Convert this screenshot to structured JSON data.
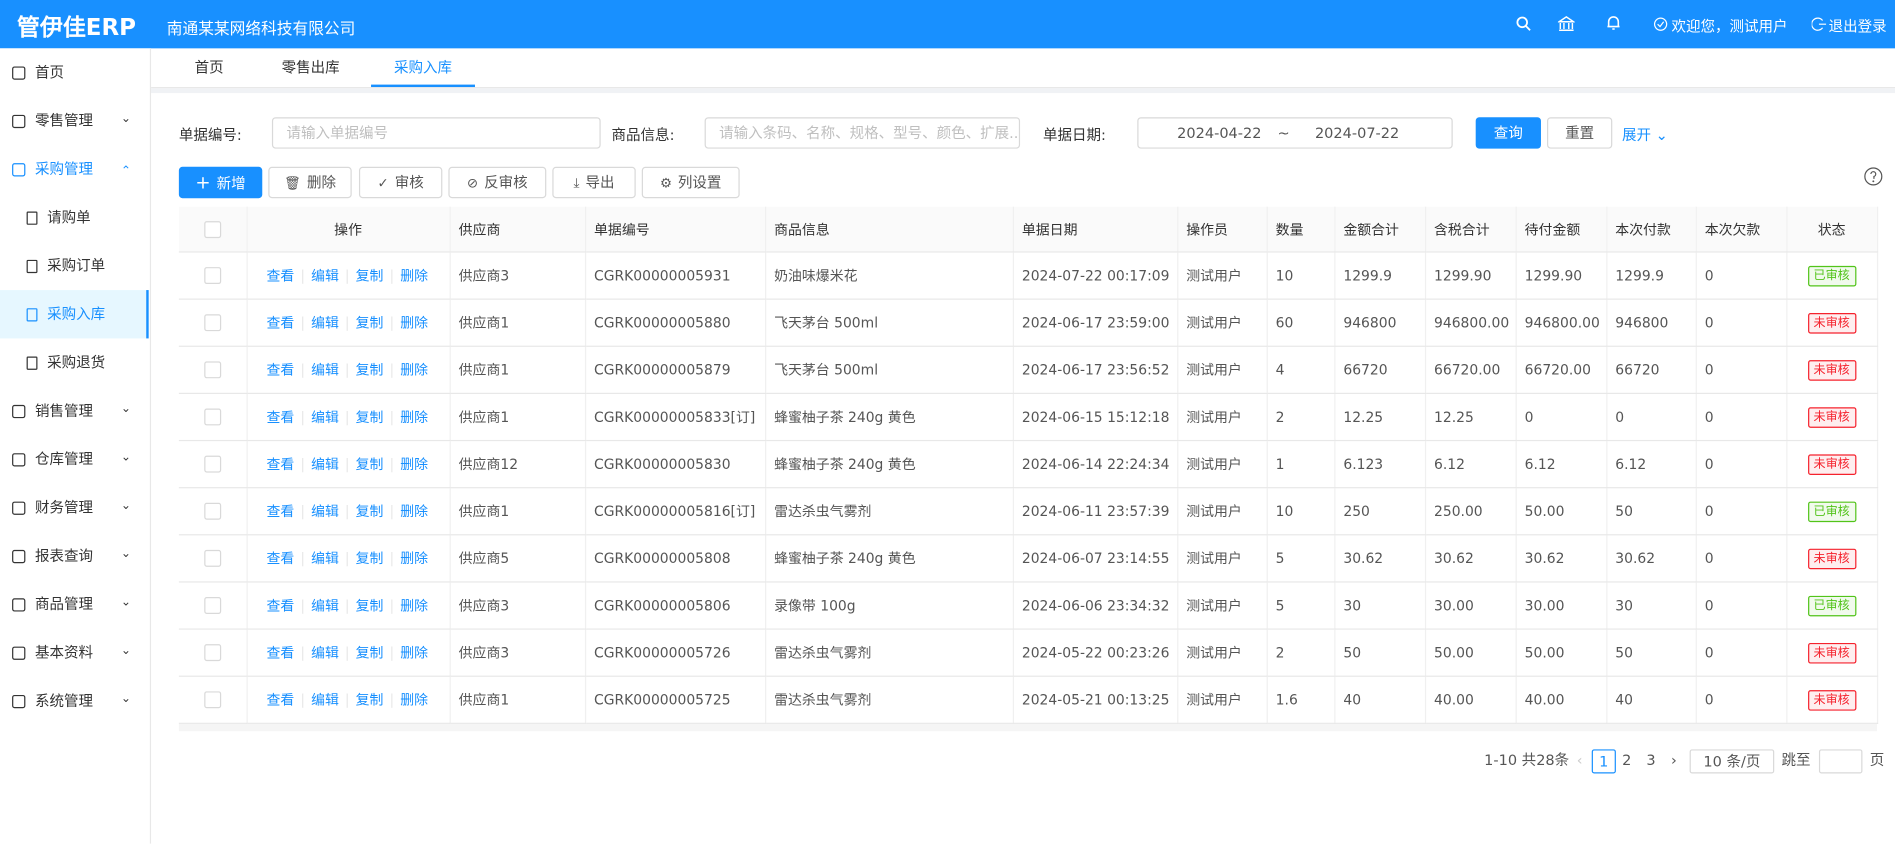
{
  "header": {
    "logo": "管伊佳ERP",
    "company": "南通某某网络科技有限公司",
    "welcome": "欢迎您，测试用户",
    "logout": "退出登录"
  },
  "sidebar": [
    {
      "label": "首页"
    },
    {
      "label": "零售管理",
      "expandable": true
    },
    {
      "label": "采购管理",
      "expandable": true,
      "open": true,
      "children": [
        {
          "label": "请购单"
        },
        {
          "label": "采购订单"
        },
        {
          "label": "采购入库",
          "active": true
        },
        {
          "label": "采购退货"
        }
      ]
    },
    {
      "label": "销售管理",
      "expandable": true
    },
    {
      "label": "仓库管理",
      "expandable": true
    },
    {
      "label": "财务管理",
      "expandable": true
    },
    {
      "label": "报表查询",
      "expandable": true
    },
    {
      "label": "商品管理",
      "expandable": true
    },
    {
      "label": "基本资料",
      "expandable": true
    },
    {
      "label": "系统管理",
      "expandable": true
    }
  ],
  "tabs": [
    {
      "label": "首页"
    },
    {
      "label": "零售出库"
    },
    {
      "label": "采购入库",
      "active": true
    }
  ],
  "filters": {
    "number_label": "单据编号:",
    "number_placeholder": "请输入单据编号",
    "product_label": "商品信息:",
    "product_placeholder": "请输入条码、名称、规格、型号、颜色、扩展...",
    "date_label": "单据日期:",
    "date_start": "2024-04-22",
    "date_sep": "~",
    "date_end": "2024-07-22",
    "query": "查询",
    "reset": "重置",
    "expand": "展开"
  },
  "toolbar": [
    "新增",
    "删除",
    "审核",
    "反审核",
    "导出",
    "列设置"
  ],
  "table": {
    "columns": [
      "操作",
      "供应商",
      "单据编号",
      "商品信息",
      "单据日期",
      "操作员",
      "数量",
      "金额合计",
      "含税合计",
      "待付金额",
      "本次付款",
      "本次欠款",
      "状态"
    ],
    "actions": [
      "查看",
      "编辑",
      "复制",
      "删除"
    ],
    "rows": [
      {
        "cells": [
          "供应商3",
          "CGRK00000005931",
          "奶油味爆米花",
          "2024-07-22 00:17:09",
          "测试用户",
          "10",
          "1299.9",
          "1299.90",
          "1299.90",
          "1299.9",
          "0"
        ],
        "status": {
          "text": "已审核",
          "color": "#52c41a"
        }
      },
      {
        "cells": [
          "供应商1",
          "CGRK00000005880",
          "飞天茅台 500ml",
          "2024-06-17 23:59:00",
          "测试用户",
          "60",
          "946800",
          "946800.00",
          "946800.00",
          "946800",
          "0"
        ],
        "status": {
          "text": "未审核",
          "color": "#f5222d"
        }
      },
      {
        "cells": [
          "供应商1",
          "CGRK00000005879",
          "飞天茅台 500ml",
          "2024-06-17 23:56:52",
          "测试用户",
          "4",
          "66720",
          "66720.00",
          "66720.00",
          "66720",
          "0"
        ],
        "status": {
          "text": "未审核",
          "color": "#f5222d"
        }
      },
      {
        "cells": [
          "供应商1",
          "CGRK00000005833[订]",
          "蜂蜜柚子茶 240g 黄色",
          "2024-06-15 15:12:18",
          "测试用户",
          "2",
          "12.25",
          "12.25",
          "0",
          "0",
          "0"
        ],
        "status": {
          "text": "未审核",
          "color": "#f5222d"
        }
      },
      {
        "cells": [
          "供应商12",
          "CGRK00000005830",
          "蜂蜜柚子茶 240g 黄色",
          "2024-06-14 22:24:34",
          "测试用户",
          "1",
          "6.123",
          "6.12",
          "6.12",
          "6.12",
          "0"
        ],
        "status": {
          "text": "未审核",
          "color": "#f5222d"
        }
      },
      {
        "cells": [
          "供应商1",
          "CGRK00000005816[订]",
          "雷达杀虫气雾剂",
          "2024-06-11 23:57:39",
          "测试用户",
          "10",
          "250",
          "250.00",
          "50.00",
          "50",
          "0"
        ],
        "status": {
          "text": "已审核",
          "color": "#52c41a"
        }
      },
      {
        "cells": [
          "供应商5",
          "CGRK00000005808",
          "蜂蜜柚子茶 240g 黄色",
          "2024-06-07 23:14:55",
          "测试用户",
          "5",
          "30.62",
          "30.62",
          "30.62",
          "30.62",
          "0"
        ],
        "status": {
          "text": "未审核",
          "color": "#f5222d"
        }
      },
      {
        "cells": [
          "供应商3",
          "CGRK00000005806",
          "录像带 100g",
          "2024-06-06 23:34:32",
          "测试用户",
          "5",
          "30",
          "30.00",
          "30.00",
          "30",
          "0"
        ],
        "status": {
          "text": "已审核",
          "color": "#52c41a"
        }
      },
      {
        "cells": [
          "供应商3",
          "CGRK00000005726",
          "雷达杀虫气雾剂",
          "2024-05-22 00:23:26",
          "测试用户",
          "2",
          "50",
          "50.00",
          "50.00",
          "50",
          "0"
        ],
        "status": {
          "text": "未审核",
          "color": "#f5222d"
        }
      },
      {
        "cells": [
          "供应商1",
          "CGRK00000005725",
          "雷达杀虫气雾剂",
          "2024-05-21 00:13:25",
          "测试用户",
          "1.6",
          "40",
          "40.00",
          "40.00",
          "40",
          "0"
        ],
        "status": {
          "text": "未审核",
          "color": "#f5222d"
        }
      }
    ]
  },
  "pagination": {
    "summary": "1-10 共28条",
    "pages": [
      "1",
      "2",
      "3"
    ],
    "current": 0,
    "page_size": "10 条/页",
    "jump": "跳至",
    "page_unit": "页"
  }
}
